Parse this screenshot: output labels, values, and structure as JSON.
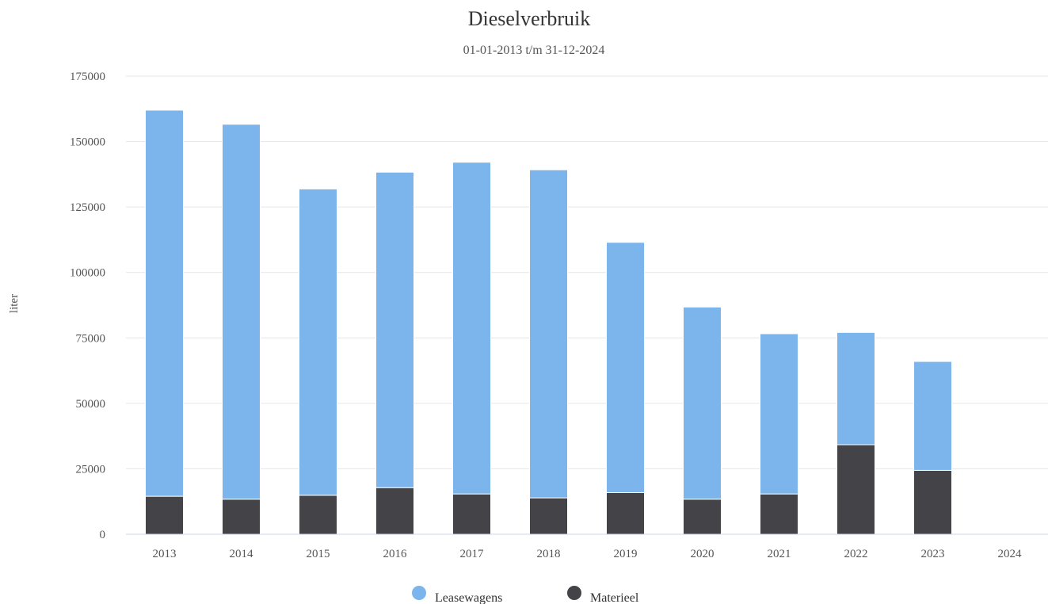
{
  "chart_data": {
    "type": "bar",
    "stacked": true,
    "title": "Dieselverbruik",
    "subtitle": "01-01-2013 t/m 31-12-2024",
    "ylabel": "liter",
    "xlabel": "",
    "ylim": [
      0,
      175000
    ],
    "yticks": [
      0,
      25000,
      50000,
      75000,
      100000,
      125000,
      150000,
      175000
    ],
    "grid": true,
    "legend_position": "bottom-center",
    "categories": [
      "2013",
      "2014",
      "2015",
      "2016",
      "2017",
      "2018",
      "2019",
      "2020",
      "2021",
      "2022",
      "2023",
      "2024"
    ],
    "series": [
      {
        "name": "Leasewagens",
        "color": "#7cb5ec",
        "values": [
          147500,
          143200,
          117000,
          120500,
          126700,
          125300,
          95600,
          73400,
          61200,
          42900,
          41600,
          0
        ]
      },
      {
        "name": "Materieel",
        "color": "#434348",
        "values": [
          14500,
          13400,
          14900,
          17800,
          15400,
          13900,
          15900,
          13400,
          15400,
          34200,
          24400,
          0
        ]
      }
    ]
  }
}
